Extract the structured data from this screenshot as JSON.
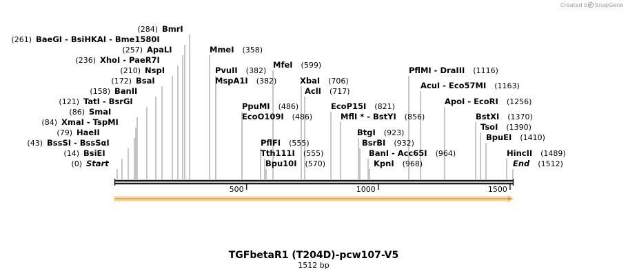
{
  "credit": {
    "text": "Created by",
    "brand": "SnapGene"
  },
  "title": "TGFbetaR1 (T204D)-pcw107-V5",
  "length_label": "1512 bp",
  "colors": {
    "feature_fill": "#f6b64a",
    "feature_outline": "#e5a13a",
    "backbone": "#1a1a1a",
    "leader": "#808080"
  },
  "ticks": [
    "500",
    "1000",
    "1500"
  ],
  "sites": [
    {
      "pos": "(0)",
      "names": [
        "Start"
      ],
      "italic": true
    },
    {
      "pos": "(14)",
      "names": [
        "BsiEI"
      ]
    },
    {
      "pos": "(43)",
      "names": [
        "BssSI",
        "BssSαI"
      ]
    },
    {
      "pos": "(79)",
      "names": [
        "HaeII"
      ]
    },
    {
      "pos": "(84)",
      "names": [
        "XmaI",
        "TspMI"
      ]
    },
    {
      "pos": "(86)",
      "names": [
        "SmaI"
      ]
    },
    {
      "pos": "(121)",
      "names": [
        "TatI",
        "BsrGI"
      ]
    },
    {
      "pos": "(158)",
      "names": [
        "BanII"
      ]
    },
    {
      "pos": "(172)",
      "names": [
        "BsaI"
      ]
    },
    {
      "pos": "(210)",
      "names": [
        "NspI"
      ]
    },
    {
      "pos": "(236)",
      "names": [
        "XhoI",
        "PaeR7I"
      ]
    },
    {
      "pos": "(257)",
      "names": [
        "ApaLI"
      ]
    },
    {
      "pos": "(261)",
      "names": [
        "BaeGI",
        "BsiHKAI",
        "Bme1580I"
      ]
    },
    {
      "pos": "(284)",
      "names": [
        "BmrI"
      ]
    },
    {
      "pos": "(358)",
      "names": [
        "MmeI"
      ]
    },
    {
      "pos": "(382)",
      "names": [
        "PvuII"
      ]
    },
    {
      "pos": "(382)",
      "names": [
        "MspA1I"
      ]
    },
    {
      "pos": "(486)",
      "names": [
        "PpuMI"
      ]
    },
    {
      "pos": "(486)",
      "names": [
        "EcoO109I"
      ]
    },
    {
      "pos": "(555)",
      "names": [
        "PflFI"
      ]
    },
    {
      "pos": "(555)",
      "names": [
        "Tth111I"
      ]
    },
    {
      "pos": "(570)",
      "names": [
        "Bpu10I"
      ]
    },
    {
      "pos": "(599)",
      "names": [
        "MfeI"
      ]
    },
    {
      "pos": "(706)",
      "names": [
        "XbaI"
      ]
    },
    {
      "pos": "(717)",
      "names": [
        "AclI"
      ]
    },
    {
      "pos": "(821)",
      "names": [
        "EcoP15I"
      ]
    },
    {
      "pos": "(856)",
      "names": [
        "MflI *",
        "BstYI"
      ]
    },
    {
      "pos": "(923)",
      "names": [
        "BtgI"
      ]
    },
    {
      "pos": "(932)",
      "names": [
        "BsrBI"
      ]
    },
    {
      "pos": "(964)",
      "names": [
        "BanI",
        "Acc65I"
      ]
    },
    {
      "pos": "(968)",
      "names": [
        "KpnI"
      ]
    },
    {
      "pos": "(1116)",
      "names": [
        "PflMI",
        "DraIII"
      ]
    },
    {
      "pos": "(1163)",
      "names": [
        "AcuI",
        "Eco57MI"
      ]
    },
    {
      "pos": "(1256)",
      "names": [
        "ApoI",
        "EcoRI"
      ]
    },
    {
      "pos": "(1370)",
      "names": [
        "BstXI"
      ]
    },
    {
      "pos": "(1390)",
      "names": [
        "TsoI"
      ]
    },
    {
      "pos": "(1410)",
      "names": [
        "BpuEI"
      ]
    },
    {
      "pos": "(1489)",
      "names": [
        "HincII"
      ]
    },
    {
      "pos": "(1512)",
      "names": [
        "End"
      ],
      "italic": true
    }
  ]
}
